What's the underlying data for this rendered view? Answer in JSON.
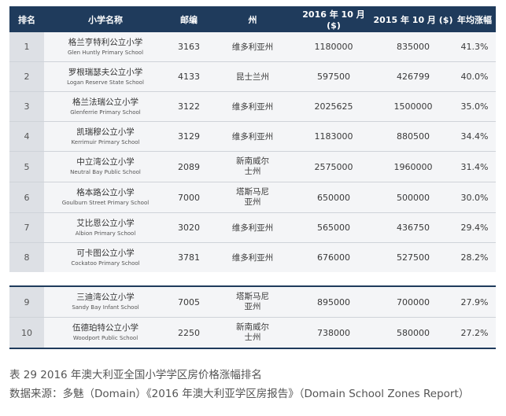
{
  "table": {
    "headers": [
      "排名",
      "小学名称",
      "邮编",
      "州",
      "2016 年 10 月 ($)",
      "2015 年 10 月 ($)",
      "年均涨幅"
    ],
    "rows": [
      {
        "rank": "1",
        "name_zh": "格兰亨特利公立小学",
        "name_en": "Glen Huntly Primary School",
        "postcode": "3163",
        "state": "维多利亚州",
        "price_2016": "1180000",
        "price_2015": "835000",
        "growth": "41.3%"
      },
      {
        "rank": "2",
        "name_zh": "罗根瑞瑟夫公立小学",
        "name_en": "Logan Reserve State School",
        "postcode": "4133",
        "state": "昆士兰州",
        "price_2016": "597500",
        "price_2015": "426799",
        "growth": "40.0%"
      },
      {
        "rank": "3",
        "name_zh": "格兰法瑞公立小学",
        "name_en": "Glenferrie Primary School",
        "postcode": "3122",
        "state": "维多利亚州",
        "price_2016": "2025625",
        "price_2015": "1500000",
        "growth": "35.0%"
      },
      {
        "rank": "4",
        "name_zh": "凯瑞穆公立小学",
        "name_en": "Kerrimuir Primary School",
        "postcode": "3129",
        "state": "维多利亚州",
        "price_2016": "1183000",
        "price_2015": "880500",
        "growth": "34.4%"
      },
      {
        "rank": "5",
        "name_zh": "中立湾公立小学",
        "name_en": "Neutral Bay Public School",
        "postcode": "2089",
        "state": "新南威尔士州",
        "price_2016": "2575000",
        "price_2015": "1960000",
        "growth": "31.4%"
      },
      {
        "rank": "6",
        "name_zh": "格本路公立小学",
        "name_en": "Goulburn Street Primary School",
        "postcode": "7000",
        "state": "塔斯马尼亚州",
        "price_2016": "650000",
        "price_2015": "500000",
        "growth": "30.0%"
      },
      {
        "rank": "7",
        "name_zh": "艾比恩公立小学",
        "name_en": "Albion Primary School",
        "postcode": "3020",
        "state": "维多利亚州",
        "price_2016": "565000",
        "price_2015": "436750",
        "growth": "29.4%"
      },
      {
        "rank": "8",
        "name_zh": "可卡图公立小学",
        "name_en": "Cockatoo Primary School",
        "postcode": "3781",
        "state": "维多利亚州",
        "price_2016": "676000",
        "price_2015": "527500",
        "growth": "28.2%"
      },
      {
        "rank": "9",
        "name_zh": "三迪湾公立小学",
        "name_en": "Sandy Bay Infant School",
        "postcode": "7005",
        "state": "塔斯马尼亚州",
        "price_2016": "895000",
        "price_2015": "700000",
        "growth": "27.9%"
      },
      {
        "rank": "10",
        "name_zh": "伍德珀特公立小学",
        "name_en": "Woodport Public School",
        "postcode": "2250",
        "state": "新南威尔士州",
        "price_2016": "738000",
        "price_2015": "580000",
        "growth": "27.2%"
      }
    ]
  },
  "caption": {
    "title": "表 29 2016 年澳大利亚全国小学学区房价格涨幅排名",
    "source": "数据来源：多魅（Domain）《2016 年澳大利亚学区房报告》（Domain School Zones Report）"
  },
  "colors": {
    "header_bg": "#1f3b5c",
    "row_bg": "#f4f5f7",
    "rank_bg": "#dde0e5"
  }
}
